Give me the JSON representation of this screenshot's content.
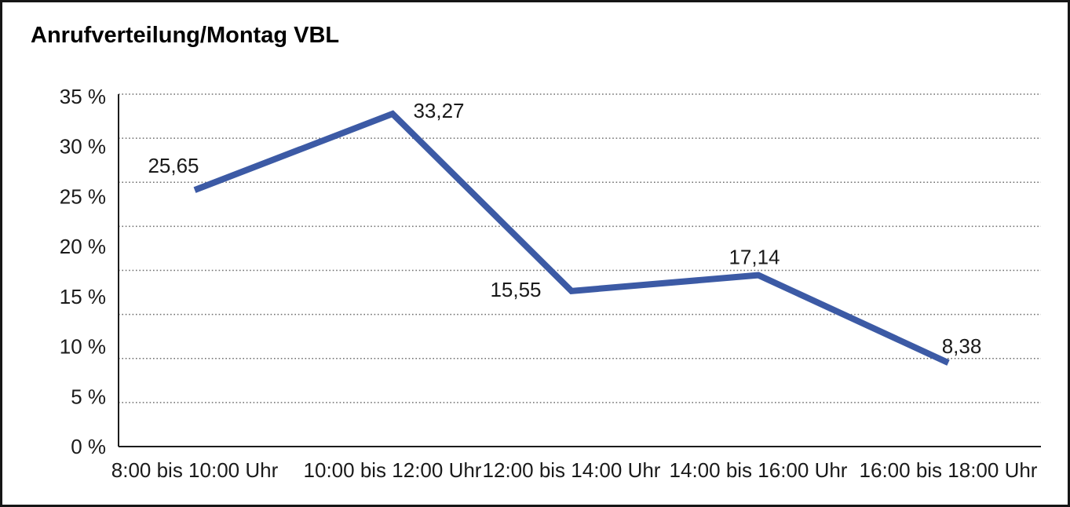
{
  "title": "Anrufverteilung/Montag VBL",
  "chart_data": {
    "type": "line",
    "title": "Anrufverteilung/Montag VBL",
    "categories": [
      "8:00 bis 10:00 Uhr",
      "10:00 bis 12:00 Uhr",
      "12:00 bis 14:00 Uhr",
      "14:00 bis 16:00 Uhr",
      "16:00 bis 18:00 Uhr"
    ],
    "values": [
      25.65,
      33.27,
      15.55,
      17.14,
      8.38
    ],
    "data_labels": [
      "25,65",
      "33,27",
      "15,55",
      "17,14",
      "8,38"
    ],
    "y_axis": {
      "tick_labels": [
        "35 %",
        "30 %",
        "25 %",
        "20 %",
        "15 %",
        "10 %",
        "5 %",
        "0 %"
      ],
      "min": 0,
      "max": 35,
      "step": 5,
      "unit": "%"
    },
    "xlabel": "",
    "ylabel": "",
    "ylim": [
      0,
      35
    ],
    "grid": "horizontal-dotted",
    "legend": "none",
    "line_color": "#3C5AA5"
  }
}
